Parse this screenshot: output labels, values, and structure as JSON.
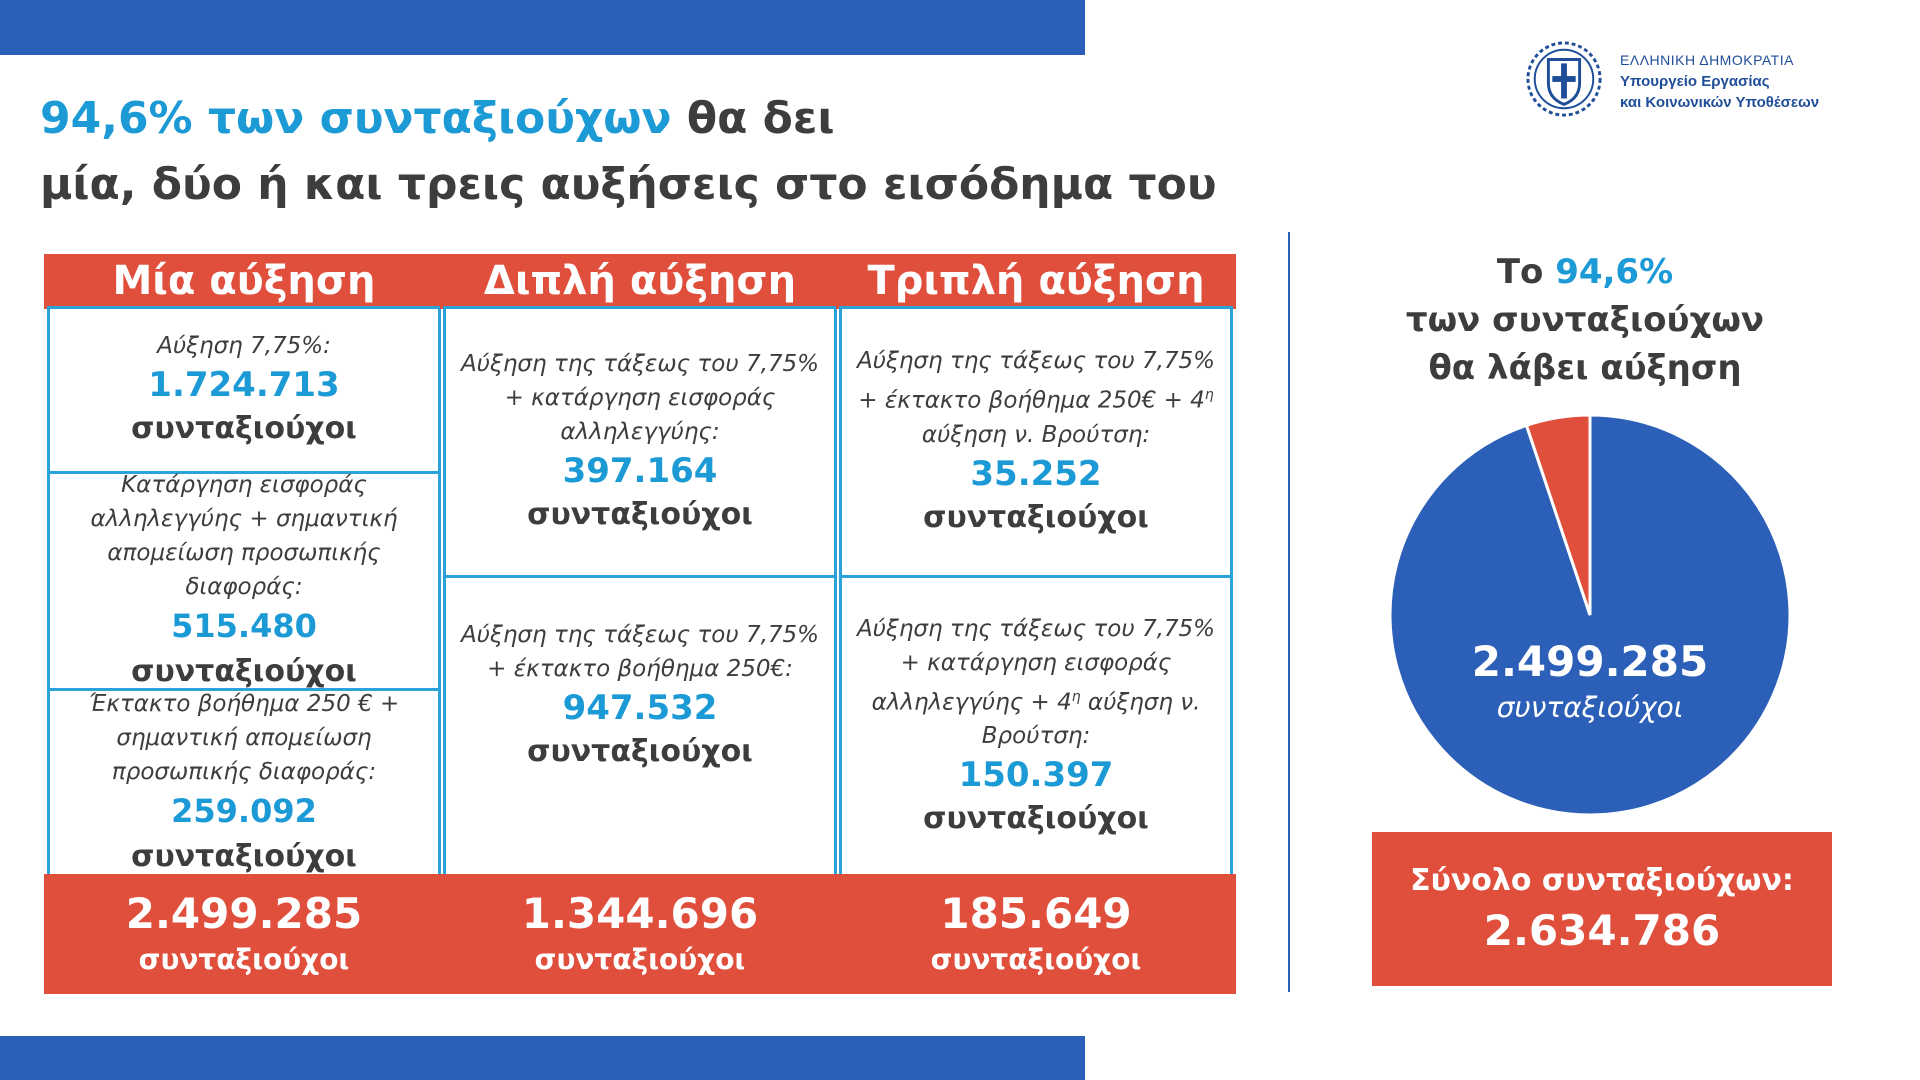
{
  "header": {
    "title_highlight": "94,6% των συνταξιούχων",
    "title_rest": " θα δει",
    "title_line2": "μία, δύο ή και τρεις αυξήσεις στο εισόδημα του"
  },
  "org": {
    "line1": "ΕΛΛΗΝΙΚΗ ΔΗΜΟΚΡΑΤΙΑ",
    "line2": "Υπουργείο Εργασίας",
    "line3": "και Κοινωνικών Υποθέσεων",
    "logo_icon": "greek-coat-of-arms-icon"
  },
  "columns": [
    {
      "header": "Μία αύξηση",
      "cells": [
        {
          "desc": "Αύξηση 7,75%:",
          "value": "1.724.713",
          "unit": "συνταξιούχοι"
        },
        {
          "desc": "Κατάργηση εισφοράς αλληλεγγύης + σημαντική απομείωση προσωπικής διαφοράς:",
          "value": "515.480",
          "unit": "συνταξιούχοι"
        },
        {
          "desc": "Έκτακτο βοήθημα 250 € + σημαντική απομείωση προσωπικής διαφοράς:",
          "value": "259.092",
          "unit": "συνταξιούχοι"
        }
      ],
      "total": "2.499.285",
      "total_unit": "συνταξιούχοι"
    },
    {
      "header": "Διπλή αύξηση",
      "cells": [
        {
          "desc": "Αύξηση της τάξεως του 7,75% + κατάργηση εισφοράς αλληλεγγύης:",
          "value": "397.164",
          "unit": "συνταξιούχοι"
        },
        {
          "desc": "Αύξηση της τάξεως του 7,75% + έκτακτο βοήθημα 250€:",
          "value": "947.532",
          "unit": "συνταξιούχοι"
        }
      ],
      "total": "1.344.696",
      "total_unit": "συνταξιούχοι"
    },
    {
      "header": "Τριπλή αύξηση",
      "cells": [
        {
          "desc_a": "Αύξηση της τάξεως του 7,75% + έκτακτο βοήθημα 250€ + 4",
          "desc_sup": "η",
          "desc_b": " αύξηση ν. Βρούτση:",
          "value": "35.252",
          "unit": "συνταξιούχοι"
        },
        {
          "desc_a": "Αύξηση της τάξεως του 7,75% + κατάργηση εισφοράς αλληλεγγύης + 4",
          "desc_sup": "η",
          "desc_b": " αύξηση ν. Βρούτση:",
          "value": "150.397",
          "unit": "συνταξιούχοι"
        }
      ],
      "total": "185.649",
      "total_unit": "συνταξιούχοι"
    }
  ],
  "pie": {
    "title_a": "Το ",
    "title_hl": "94,6%",
    "title_b": "των συνταξιούχων",
    "title_c": "θα λάβει αύξηση",
    "value_label": "2.499.285",
    "unit_label": "συνταξιούχοι"
  },
  "total": {
    "label": "Σύνολο συνταξιούχων:",
    "value": "2.634.786"
  },
  "colors": {
    "blue": "#2c5fb7",
    "red": "#e04e3c",
    "cyan": "#1c9ad6",
    "text": "#3d3d3d"
  },
  "chart_data": {
    "type": "pie",
    "title": "Το 94,6% των συνταξιούχων θα λάβει αύξηση",
    "slices": [
      {
        "label": "",
        "value": 2499285,
        "color": "#2c5fb7"
      },
      {
        "label": "",
        "value": 135501,
        "color": "#e04e3c"
      }
    ],
    "total": 2634786
  }
}
